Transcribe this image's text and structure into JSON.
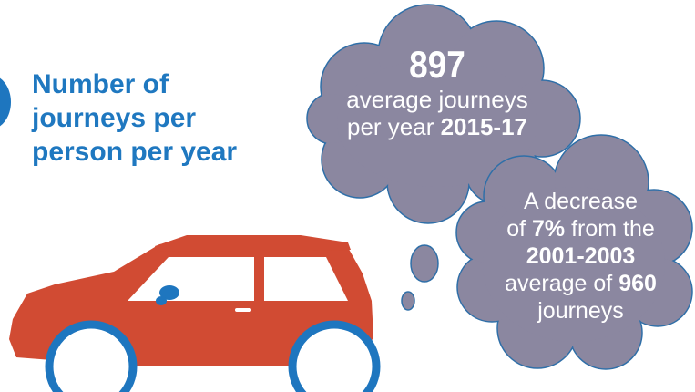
{
  "heading": {
    "line1": "Number of",
    "line2": "journeys per",
    "line3": "person per year"
  },
  "bubble_main": {
    "value": "897",
    "line1": "average journeys",
    "line2_prefix": "per year ",
    "line2_bold": "2015-17"
  },
  "bubble_secondary": {
    "line1": "A decrease",
    "line2_prefix": "of ",
    "line2_bold": "7%",
    "line2_suffix": " from the",
    "line3_bold": "2001-2003",
    "line4_prefix": "average of ",
    "line4_bold": "960",
    "line5": "journeys"
  },
  "icons": {
    "car": "car-icon",
    "thought_bubble": "thought-bubble-icon"
  },
  "colors": {
    "blue": "#1f78c0",
    "car_red": "#d14b33",
    "cloud_gray": "#8b87a0",
    "cloud_outline": "#2f6fa8"
  }
}
